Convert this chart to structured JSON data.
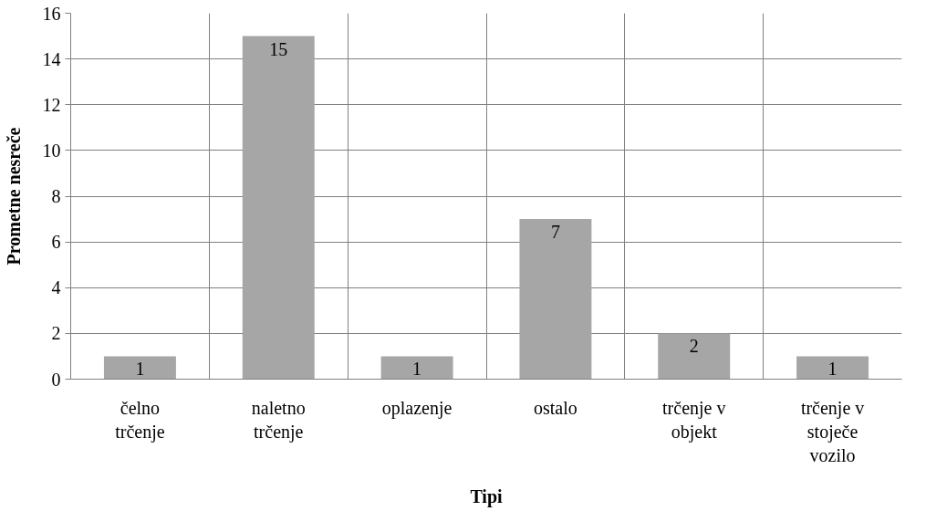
{
  "chart_data": {
    "type": "bar",
    "xlabel": "Tipi",
    "ylabel": "Prometne nesreče",
    "categories": [
      "čelno trčenje",
      "naletno trčenje",
      "oplazenje",
      "ostalo",
      "trčenje v objekt",
      "trčenje v stoječe vozilo"
    ],
    "values": [
      1,
      15,
      1,
      7,
      2,
      1
    ],
    "color": "#a6a6a6",
    "ylim": [
      0,
      16
    ],
    "yticks": [
      0,
      2,
      4,
      6,
      8,
      10,
      12,
      14,
      16
    ],
    "grid": true,
    "data_labels": true
  }
}
